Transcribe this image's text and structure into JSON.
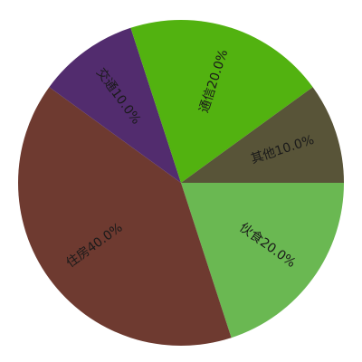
{
  "chart_data": {
    "type": "pie",
    "start_angle_deg": 0,
    "direction": "clockwise",
    "slices": [
      {
        "label": "伙食20.0%",
        "value": 20.0,
        "color": "#6ab852"
      },
      {
        "label": "住房40.0%",
        "value": 40.0,
        "color": "#6e3a30"
      },
      {
        "label": "交通10.0%",
        "value": 10.0,
        "color": "#522c6e"
      },
      {
        "label": "通信20.0%",
        "value": 20.0,
        "color": "#52b210"
      },
      {
        "label": "其他10.0%",
        "value": 10.0,
        "color": "#585438"
      }
    ]
  }
}
